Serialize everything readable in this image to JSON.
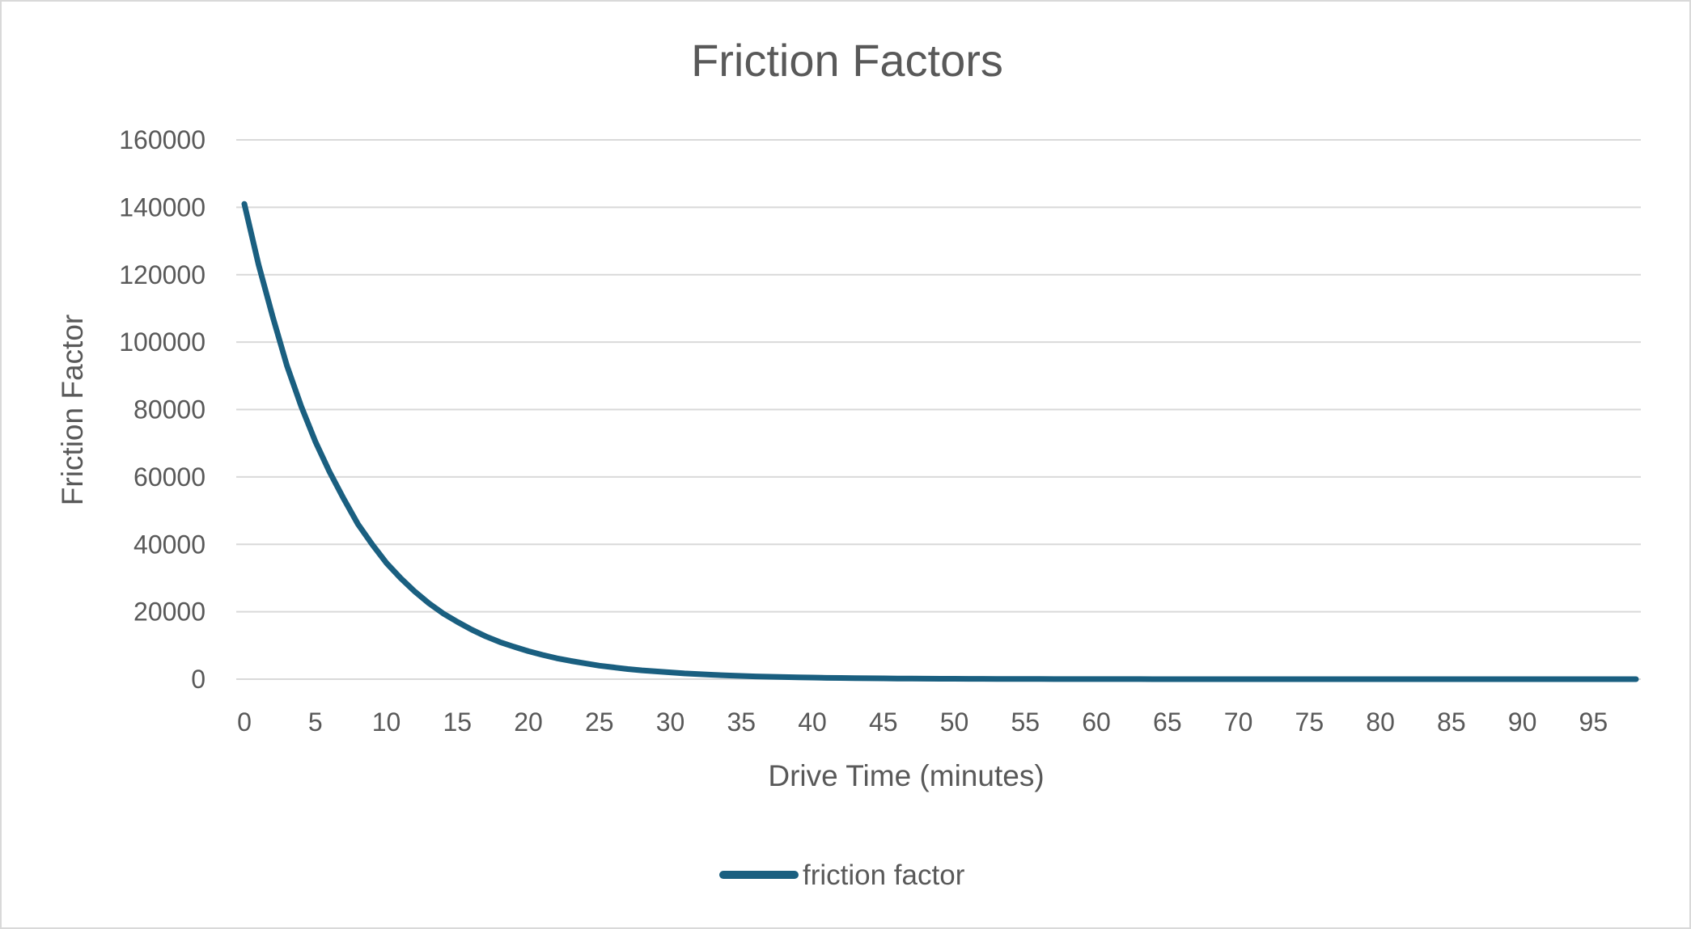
{
  "chart_data": {
    "type": "line",
    "title": "Friction Factors",
    "xlabel": "Drive Time (minutes)",
    "ylabel": "Friction Factor",
    "xlim": [
      0,
      98
    ],
    "ylim": [
      0,
      160000
    ],
    "x_ticks": [
      0,
      5,
      10,
      15,
      20,
      25,
      30,
      35,
      40,
      45,
      50,
      55,
      60,
      65,
      70,
      75,
      80,
      85,
      90,
      95
    ],
    "y_ticks": [
      0,
      20000,
      40000,
      60000,
      80000,
      100000,
      120000,
      140000,
      160000
    ],
    "grid": true,
    "legend_position": "bottom",
    "series": [
      {
        "name": "friction factor",
        "color": "#1a5f80",
        "x": [
          0,
          1,
          2,
          3,
          4,
          5,
          6,
          7,
          8,
          9,
          10,
          11,
          12,
          13,
          14,
          15,
          16,
          17,
          18,
          19,
          20,
          21,
          22,
          23,
          24,
          25,
          26,
          27,
          28,
          29,
          30,
          31,
          32,
          33,
          34,
          35,
          36,
          37,
          38,
          39,
          40,
          41,
          42,
          43,
          44,
          45,
          46,
          47,
          48,
          49,
          50,
          51,
          52,
          53,
          54,
          55,
          56,
          57,
          58,
          59,
          60,
          61,
          62,
          63,
          64,
          65,
          66,
          67,
          68,
          69,
          70,
          71,
          72,
          73,
          74,
          75,
          76,
          77,
          78,
          79,
          80,
          81,
          82,
          83,
          84,
          85,
          86,
          87,
          88,
          89,
          90,
          91,
          92,
          93,
          94,
          95,
          96,
          97,
          98
        ],
        "y": [
          141000,
          123000,
          107500,
          93000,
          81000,
          70500,
          61500,
          53500,
          46000,
          40000,
          34500,
          30000,
          26000,
          22500,
          19500,
          17000,
          14700,
          12700,
          11000,
          9600,
          8300,
          7200,
          6200,
          5400,
          4700,
          4000,
          3500,
          3000,
          2600,
          2300,
          2000,
          1700,
          1500,
          1300,
          1100,
          950,
          820,
          710,
          620,
          540,
          470,
          400,
          350,
          300,
          260,
          225,
          195,
          170,
          147,
          127,
          110,
          95,
          82,
          71,
          62,
          53,
          46,
          40,
          35,
          30,
          26,
          22,
          19,
          17,
          14,
          12,
          11,
          9,
          8,
          7,
          6,
          5,
          4,
          4,
          3,
          3,
          2,
          2,
          2,
          1,
          1,
          1,
          1,
          1,
          1,
          0,
          0,
          0,
          0,
          0,
          0,
          0,
          0,
          0,
          0,
          0,
          0,
          0,
          0
        ]
      }
    ]
  }
}
